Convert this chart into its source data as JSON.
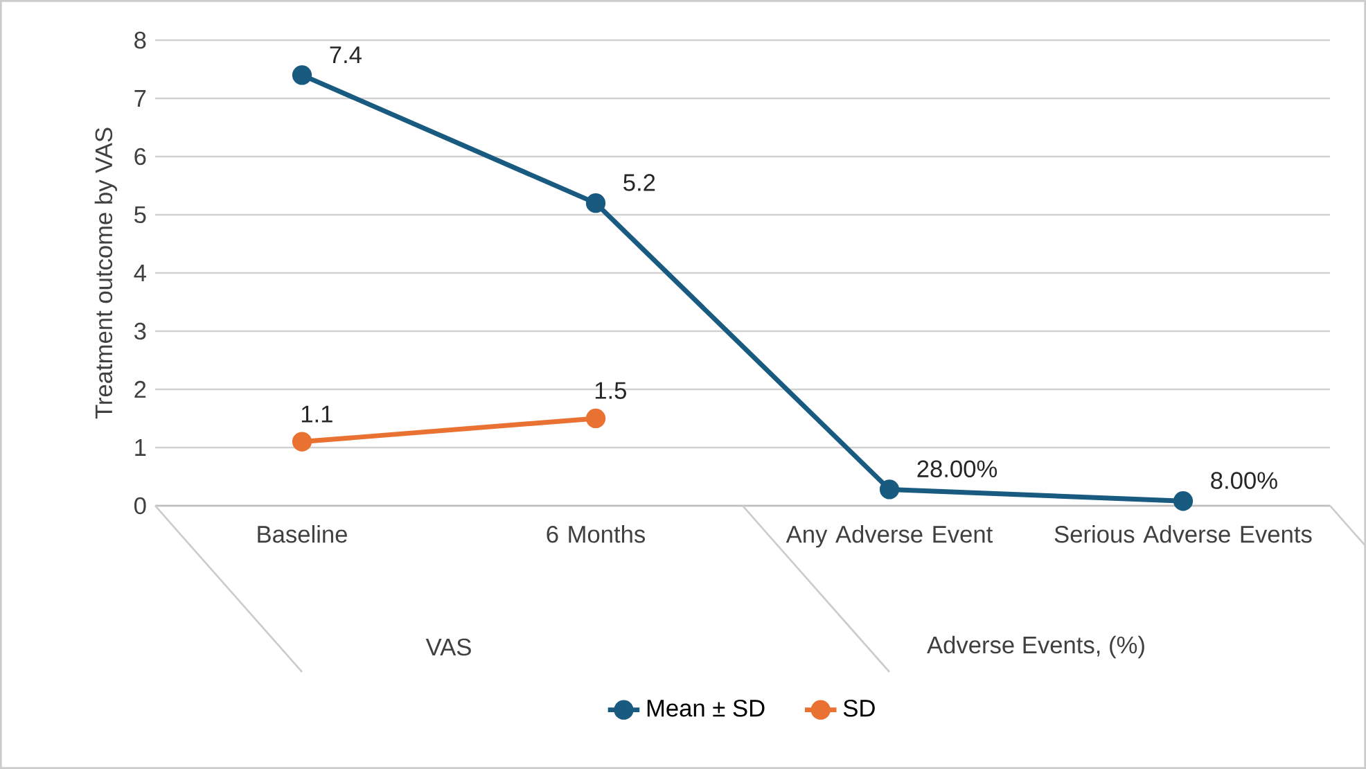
{
  "chart_data": {
    "type": "line",
    "ylabel": "Treatment outcome by VAS",
    "categories": [
      "Baseline",
      "6 Months",
      "Any Adverse Event",
      "Serious Adverse Events"
    ],
    "series": [
      {
        "name": "Mean ± SD",
        "color": "#195a80",
        "values": [
          7.4,
          5.2,
          0.28,
          0.08
        ],
        "value_labels": [
          "7.4",
          "5.2",
          "28.00%",
          "8.00%"
        ]
      },
      {
        "name": "SD",
        "color": "#e97132",
        "values": [
          1.1,
          1.5,
          null,
          null
        ],
        "value_labels": [
          "1.1",
          "1.5",
          null,
          null
        ]
      }
    ],
    "annotations": [
      "VAS",
      "Adverse Events, (%)"
    ],
    "ylim": [
      0,
      8
    ],
    "yticks": [
      0,
      1,
      2,
      3,
      4,
      5,
      6,
      7,
      8
    ],
    "grid": "y",
    "legend": "bottom",
    "marker": "circle",
    "line_style": "solid"
  }
}
